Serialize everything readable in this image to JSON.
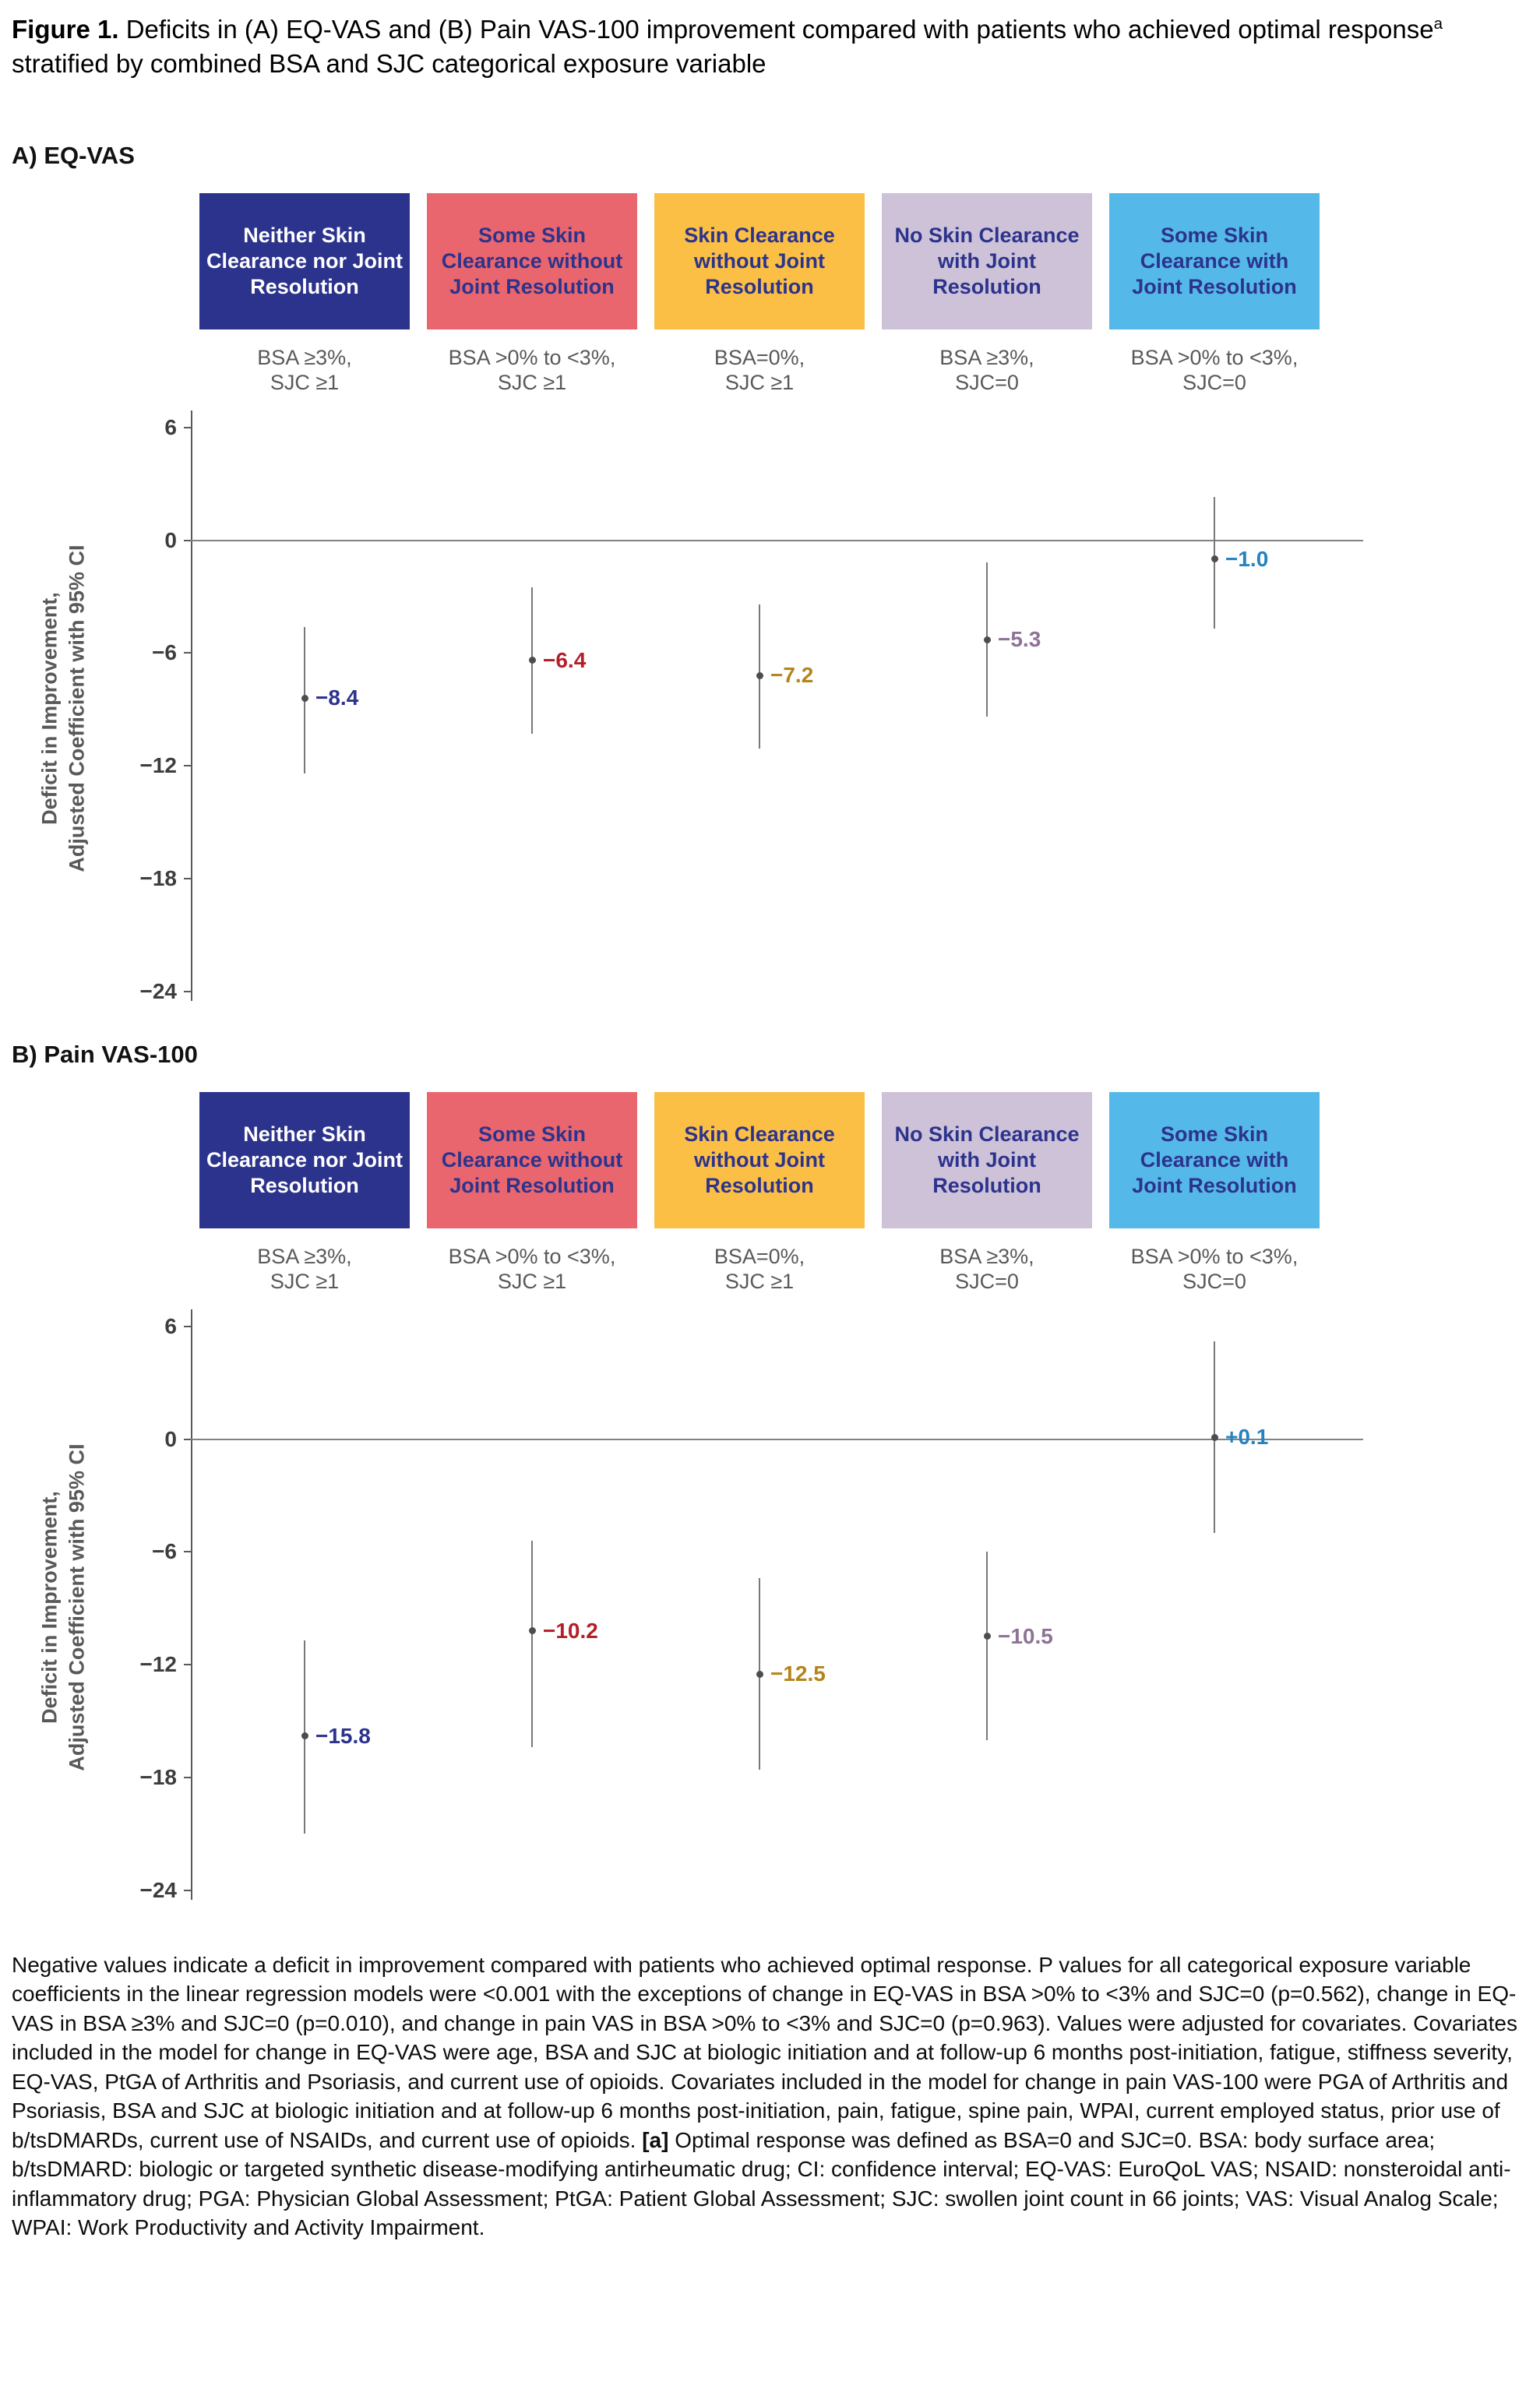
{
  "figure": {
    "label": "Figure 1.",
    "caption_main": " Deficits in (A) EQ-VAS and (B) Pain VAS-100 improvement compared with patients who achieved optimal response",
    "caption_sup": "a",
    "caption_tail": " stratified by combined BSA and SJC categorical exposure variable"
  },
  "categories": [
    {
      "title": "Neither Skin Clearance nor Joint Resolution",
      "subgroup": "BSA ≥3%,\nSJC ≥1",
      "box_color": "#2c338c",
      "text_color": "#ffffff"
    },
    {
      "title": "Some Skin Clearance without Joint Resolution",
      "subgroup": "BSA >0% to <3%,\nSJC ≥1",
      "box_color": "#e9666e",
      "text_color": "#2c338c"
    },
    {
      "title": "Skin Clearance without Joint Resolution",
      "subgroup": "BSA=0%,\nSJC ≥1",
      "box_color": "#fbbf45",
      "text_color": "#2c338c"
    },
    {
      "title": "No Skin Clearance with Joint Resolution",
      "subgroup": "BSA ≥3%,\nSJC=0",
      "box_color": "#cdc2d8",
      "text_color": "#2c338c"
    },
    {
      "title": "Some Skin Clearance with Joint Resolution",
      "subgroup": "BSA >0% to <3%,\nSJC=0",
      "box_color": "#54b8e8",
      "text_color": "#2c338c"
    }
  ],
  "chart_data": [
    {
      "type": "scatter",
      "title": "A) EQ-VAS",
      "ylabel": "Deficit in Improvement,\nAdjusted Coefficient with 95% CI",
      "ylim": [
        -24,
        6
      ],
      "grid": "off",
      "yticks": [
        {
          "value": 6,
          "label": "6"
        },
        {
          "value": 0,
          "label": "0"
        },
        {
          "value": -6,
          "label": "−6"
        },
        {
          "value": -12,
          "label": "−12"
        },
        {
          "value": -18,
          "label": "−18"
        },
        {
          "value": -24,
          "label": "−24"
        }
      ],
      "categories": [
        "BSA ≥3%, SJC ≥1",
        "BSA >0% to <3%, SJC ≥1",
        "BSA=0%, SJC ≥1",
        "BSA ≥3%, SJC=0",
        "BSA >0% to <3%, SJC=0"
      ],
      "points": [
        {
          "value": -8.4,
          "label": "−8.4",
          "ci_low": -12.4,
          "ci_high": -4.6,
          "label_color": "#2c338c"
        },
        {
          "value": -6.4,
          "label": "−6.4",
          "ci_low": -10.3,
          "ci_high": -2.5,
          "label_color": "#b22028"
        },
        {
          "value": -7.2,
          "label": "−7.2",
          "ci_low": -11.1,
          "ci_high": -3.4,
          "label_color": "#b5841b"
        },
        {
          "value": -5.3,
          "label": "−5.3",
          "ci_low": -9.4,
          "ci_high": -1.2,
          "label_color": "#8e7396"
        },
        {
          "value": -1.0,
          "label": "−1.0",
          "ci_low": -4.7,
          "ci_high": 2.3,
          "label_color": "#2583c0"
        }
      ]
    },
    {
      "type": "scatter",
      "title": "B) Pain VAS-100",
      "ylabel": "Deficit in Improvement,\nAdjusted Coefficient with 95% CI",
      "ylim": [
        -24,
        6
      ],
      "grid": "off",
      "yticks": [
        {
          "value": 6,
          "label": "6"
        },
        {
          "value": 0,
          "label": "0"
        },
        {
          "value": -6,
          "label": "−6"
        },
        {
          "value": -12,
          "label": "−12"
        },
        {
          "value": -18,
          "label": "−18"
        },
        {
          "value": -24,
          "label": "−24"
        }
      ],
      "categories": [
        "BSA ≥3%, SJC ≥1",
        "BSA >0% to <3%, SJC ≥1",
        "BSA=0%, SJC ≥1",
        "BSA ≥3%, SJC=0",
        "BSA >0% to <3%, SJC=0"
      ],
      "points": [
        {
          "value": -15.8,
          "label": "−15.8",
          "ci_low": -21.0,
          "ci_high": -10.7,
          "label_color": "#2c338c"
        },
        {
          "value": -10.2,
          "label": "−10.2",
          "ci_low": -16.4,
          "ci_high": -5.4,
          "label_color": "#b22028"
        },
        {
          "value": -12.5,
          "label": "−12.5",
          "ci_low": -17.6,
          "ci_high": -7.4,
          "label_color": "#b5841b"
        },
        {
          "value": -10.5,
          "label": "−10.5",
          "ci_low": -16.0,
          "ci_high": -6.0,
          "label_color": "#8e7396"
        },
        {
          "value": 0.1,
          "label": "+0.1",
          "ci_low": -5.0,
          "ci_high": 5.2,
          "label_color": "#2583c0"
        }
      ]
    }
  ],
  "footnote": {
    "part1": "Negative values indicate a deficit in improvement compared with patients who achieved optimal response. P values for all categorical exposure variable coefficients in the linear regression models were <0.001 with the exceptions of change in EQ-VAS in BSA >0% to <3% and SJC=0 (p=0.562), change in EQ-VAS in BSA ≥3% and SJC=0 (p=0.010), and change in pain VAS in BSA >0% to <3% and SJC=0 (p=0.963). Values were adjusted for covariates. Covariates included in the model for change in EQ-VAS were age, BSA and SJC at biologic initiation and at follow-up 6 months post-initiation, fatigue, stiffness severity, EQ-VAS, PtGA of Arthritis and Psoriasis, and current use of opioids. Covariates included in the model for change in pain VAS-100 were PGA of Arthritis and Psoriasis, BSA and SJC at biologic initiation and at follow-up 6 months post-initiation, pain, fatigue, spine pain, WPAI, current employed status, prior use of b/tsDMARDs, current use of NSAIDs, and current use of opioids. ",
    "marker": "[a]",
    "part2": " Optimal response was defined as BSA=0 and SJC=0. BSA: body surface area; b/tsDMARD: biologic or targeted synthetic disease-modifying antirheumatic drug; CI: confidence interval; EQ-VAS: EuroQoL VAS; NSAID: nonsteroidal anti-inflammatory drug; PGA: Physician Global Assessment; PtGA: Patient Global Assessment; SJC: swollen joint count in 66 joints; VAS: Visual Analog Scale; WPAI: Work Productivity and Activity Impairment."
  }
}
